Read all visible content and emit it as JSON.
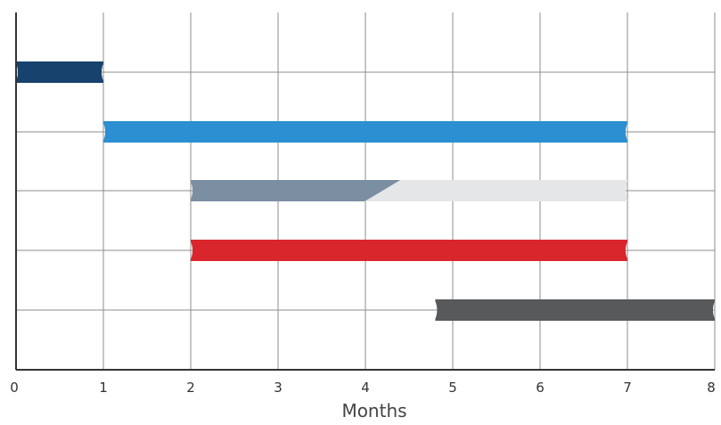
{
  "chart_data": {
    "type": "bar",
    "subtype": "gantt",
    "title": "",
    "xlabel": "Months",
    "ylabel": "",
    "xlim": [
      0,
      8
    ],
    "x_ticks": [
      "0",
      "1",
      "2",
      "3",
      "4",
      "5",
      "6",
      "7",
      "8"
    ],
    "grid": true,
    "legend": "none",
    "tasks": [
      {
        "start": 0,
        "end": 1,
        "color": "#17426e"
      },
      {
        "start": 1,
        "end": 7,
        "color": "#2b8fd1"
      },
      {
        "start": 2,
        "end": 7,
        "progress_end": 4.4,
        "color": "#7b8ea2",
        "remaining_color": "#e5e6e8"
      },
      {
        "start": 2,
        "end": 7,
        "color": "#d9262c"
      },
      {
        "start": 4.8,
        "end": 8,
        "color": "#58595b"
      }
    ]
  },
  "colors": {
    "grid": "#8c8c8c",
    "axis": "#333333"
  }
}
